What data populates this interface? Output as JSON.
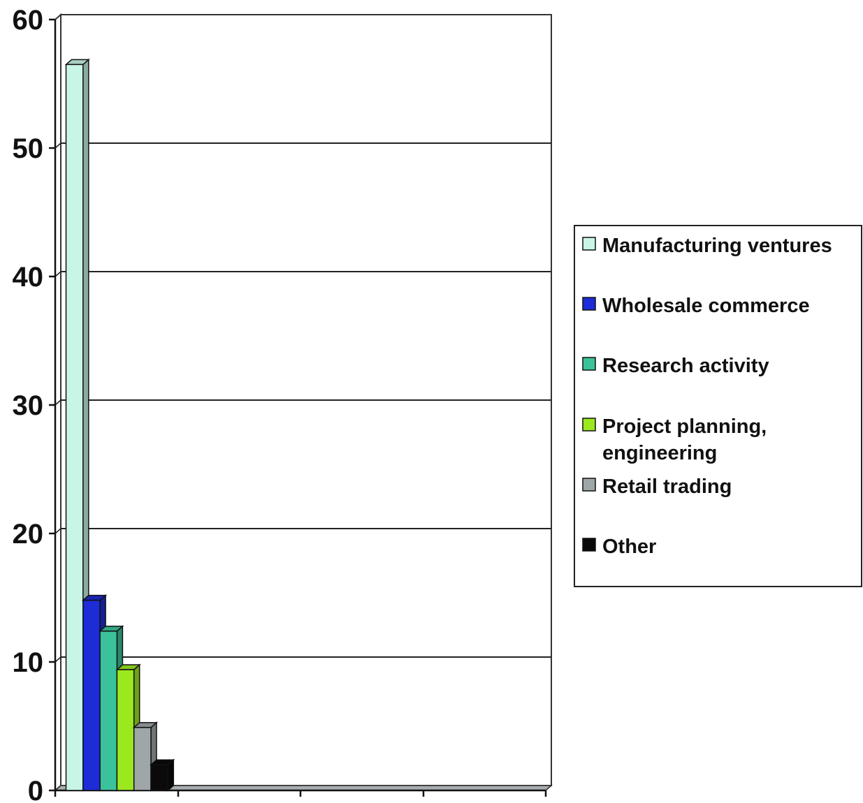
{
  "chart_data": {
    "type": "bar",
    "style": "3d-clustered",
    "title": "",
    "xlabel": "",
    "ylabel": "",
    "ylim": [
      0,
      60
    ],
    "yticks": [
      "0",
      "10",
      "20",
      "30",
      "40",
      "50",
      "60"
    ],
    "grid": true,
    "legend_position": "right",
    "series": [
      {
        "name": "Manufacturing ventures",
        "value": 56.5,
        "color": "#c8f5e6"
      },
      {
        "name": "Wholesale commerce",
        "value": 14.8,
        "color": "#1d2cd6"
      },
      {
        "name": "Research activity",
        "value": 12.4,
        "color": "#3cc29a"
      },
      {
        "name": "Project planning, engineering",
        "legend_lines": [
          "Project planning,",
          "engineering"
        ],
        "value": 9.4,
        "color": "#9be81f"
      },
      {
        "name": "Retail trading",
        "value": 4.9,
        "color": "#9ea6a8"
      },
      {
        "name": "Other",
        "value": 2.0,
        "color": "#0a0a0a"
      }
    ]
  }
}
